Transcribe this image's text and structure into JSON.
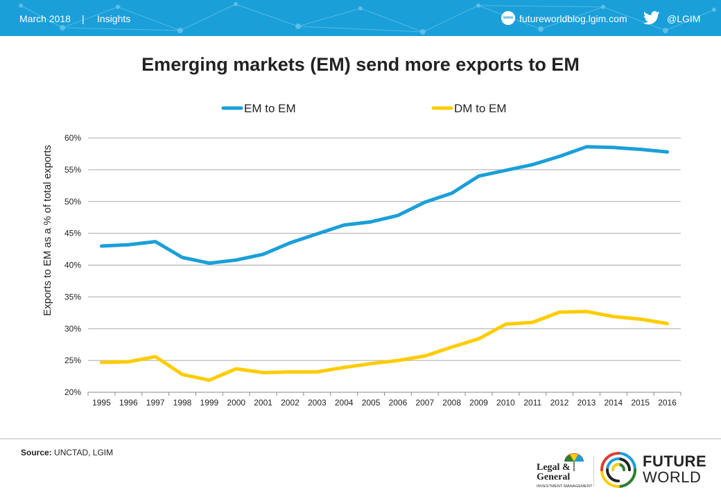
{
  "header": {
    "date": "March 2018",
    "separator": "|",
    "section": "Insights",
    "www_badge": "www",
    "url": "futureworldblog.lgim.com",
    "twitter_handle": "@LGIM"
  },
  "footer": {
    "source_label": "Source:",
    "source_text": " UNCTAD, LGIM",
    "lg_name": "Legal & General",
    "lg_subtitle": "INVESTMENT MANAGEMENT",
    "fw_line1": "FUTURE",
    "fw_line2": "WORLD"
  },
  "colors": {
    "header_bg": "#1a9fd9",
    "em_to_em": "#1a9fd9",
    "dm_to_em": "#ffcc00"
  },
  "chart_data": {
    "type": "line",
    "title": "Emerging markets (EM) send more exports to EM",
    "xlabel": "",
    "ylabel": "Exports to EM as a % of total exports",
    "x": [
      "1995",
      "1996",
      "1997",
      "1998",
      "1999",
      "2000",
      "2001",
      "2002",
      "2003",
      "2004",
      "2005",
      "2006",
      "2007",
      "2008",
      "2009",
      "2010",
      "2011",
      "2012",
      "2013",
      "2014",
      "2015",
      "2016"
    ],
    "ylim": [
      20,
      60
    ],
    "yticks": [
      20,
      25,
      30,
      35,
      40,
      45,
      50,
      55,
      60
    ],
    "ytick_suffix": "%",
    "grid": true,
    "legend": "top-center",
    "series": [
      {
        "name": "EM to EM",
        "color": "#1a9fd9",
        "values": [
          43.0,
          43.2,
          43.7,
          41.2,
          40.3,
          40.8,
          41.7,
          43.5,
          44.9,
          46.3,
          46.8,
          47.8,
          49.9,
          51.3,
          54.0,
          54.9,
          55.8,
          57.1,
          58.6,
          58.5,
          58.2,
          57.8
        ]
      },
      {
        "name": "DM to EM",
        "color": "#ffcc00",
        "values": [
          24.7,
          24.8,
          25.6,
          22.8,
          21.9,
          23.7,
          23.1,
          23.2,
          23.2,
          23.9,
          24.5,
          25.0,
          25.7,
          27.1,
          28.4,
          30.7,
          31.0,
          32.6,
          32.7,
          31.9,
          31.5,
          30.8
        ]
      }
    ]
  }
}
